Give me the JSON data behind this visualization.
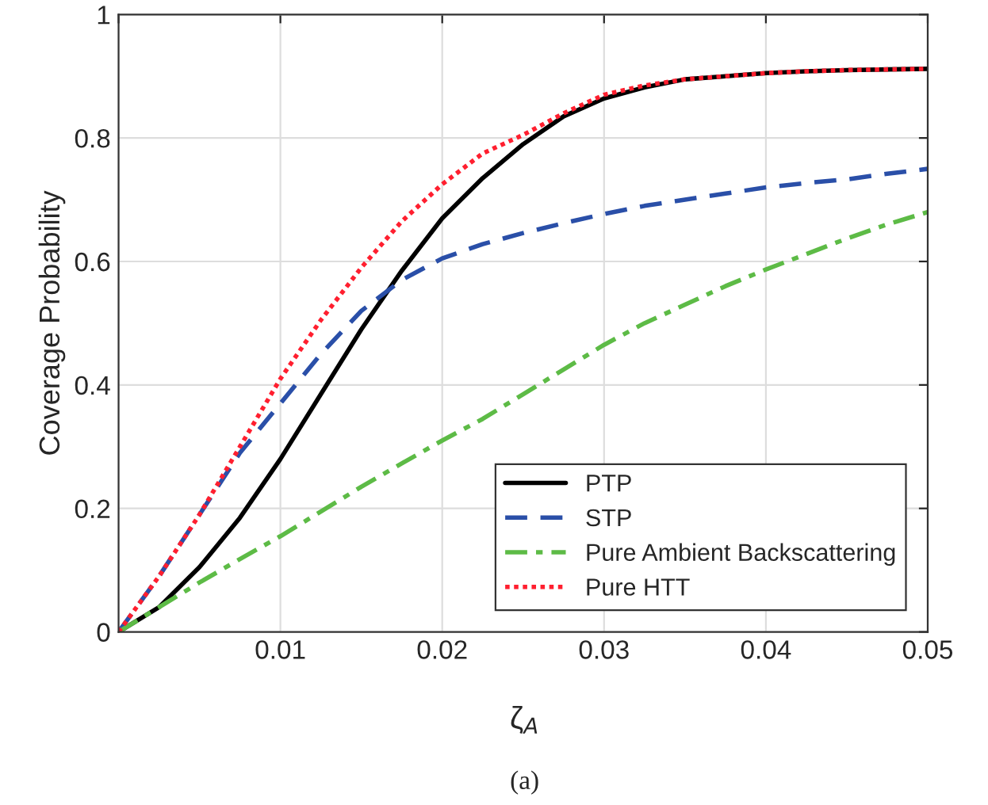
{
  "chart_data": {
    "type": "line",
    "xlabel": "ζ$_{A}$",
    "ylabel": "Coverage Probability",
    "x": [
      0,
      0.0025,
      0.005,
      0.0075,
      0.01,
      0.0125,
      0.015,
      0.0175,
      0.02,
      0.0225,
      0.025,
      0.0275,
      0.03,
      0.0325,
      0.035,
      0.0375,
      0.04,
      0.0425,
      0.045,
      0.0475,
      0.05
    ],
    "series": [
      {
        "name": "PTP",
        "color": "#000000",
        "line_style": "solid",
        "values": [
          0,
          0.04,
          0.105,
          0.185,
          0.28,
          0.385,
          0.49,
          0.585,
          0.67,
          0.735,
          0.79,
          0.835,
          0.864,
          0.882,
          0.895,
          0.9,
          0.905,
          0.908,
          0.91,
          0.911,
          0.912
        ]
      },
      {
        "name": "STP",
        "color": "#2a4fa8",
        "line_style": "dashed",
        "values": [
          0,
          0.09,
          0.19,
          0.29,
          0.37,
          0.45,
          0.52,
          0.57,
          0.605,
          0.628,
          0.646,
          0.662,
          0.677,
          0.69,
          0.7,
          0.71,
          0.72,
          0.727,
          0.733,
          0.742,
          0.75
        ]
      },
      {
        "name": "Pure Ambient Backscattering",
        "color": "#5dbb46",
        "line_style": "dashdot",
        "values": [
          0,
          0.04,
          0.08,
          0.118,
          0.155,
          0.195,
          0.235,
          0.273,
          0.31,
          0.345,
          0.385,
          0.425,
          0.465,
          0.5,
          0.53,
          0.56,
          0.587,
          0.612,
          0.637,
          0.66,
          0.68
        ]
      },
      {
        "name": "Pure HTT",
        "color": "#ff1f2f",
        "line_style": "dotted",
        "values": [
          0,
          0.09,
          0.19,
          0.3,
          0.41,
          0.505,
          0.59,
          0.665,
          0.725,
          0.775,
          0.805,
          0.84,
          0.87,
          0.885,
          0.895,
          0.9,
          0.905,
          0.908,
          0.91,
          0.911,
          0.912
        ]
      }
    ],
    "xlim": [
      0,
      0.05
    ],
    "xticks": [
      {
        "value": 0,
        "label": null
      },
      0.01,
      0.02,
      0.03,
      0.04,
      0.05
    ],
    "ylim": [
      0,
      1
    ],
    "yticks": [
      0,
      0.2,
      0.4,
      0.6,
      0.8,
      1
    ],
    "grid": true,
    "legend": "bottom right",
    "annotations": [
      "(a)"
    ]
  }
}
